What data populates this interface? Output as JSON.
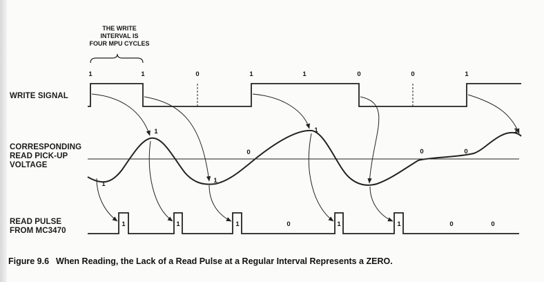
{
  "annotation": {
    "lines": [
      "THE WRITE",
      "INTERVAL IS",
      "FOUR MPU CYCLES"
    ]
  },
  "labels": {
    "write_signal": [
      "WRITE SIGNAL"
    ],
    "read_voltage": [
      "CORRESPONDING",
      "READ PICK-UP",
      "VOLTAGE"
    ],
    "read_pulse": [
      "READ PULSE",
      "FROM MC3470"
    ]
  },
  "write_bits": [
    "1",
    "1",
    "0",
    "1",
    "1",
    "0",
    "0",
    "1"
  ],
  "voltage_marks": [
    "1",
    "1",
    "1",
    "0",
    "1",
    "0",
    "0",
    "1"
  ],
  "pulse_marks": [
    "1",
    "1",
    "1",
    "0",
    "1",
    "1",
    "0",
    "0"
  ],
  "caption": {
    "number": "Figure 9.6",
    "text": "When Reading, the Lack of a Read Pulse at a Regular Interval Represents a ZERO."
  }
}
